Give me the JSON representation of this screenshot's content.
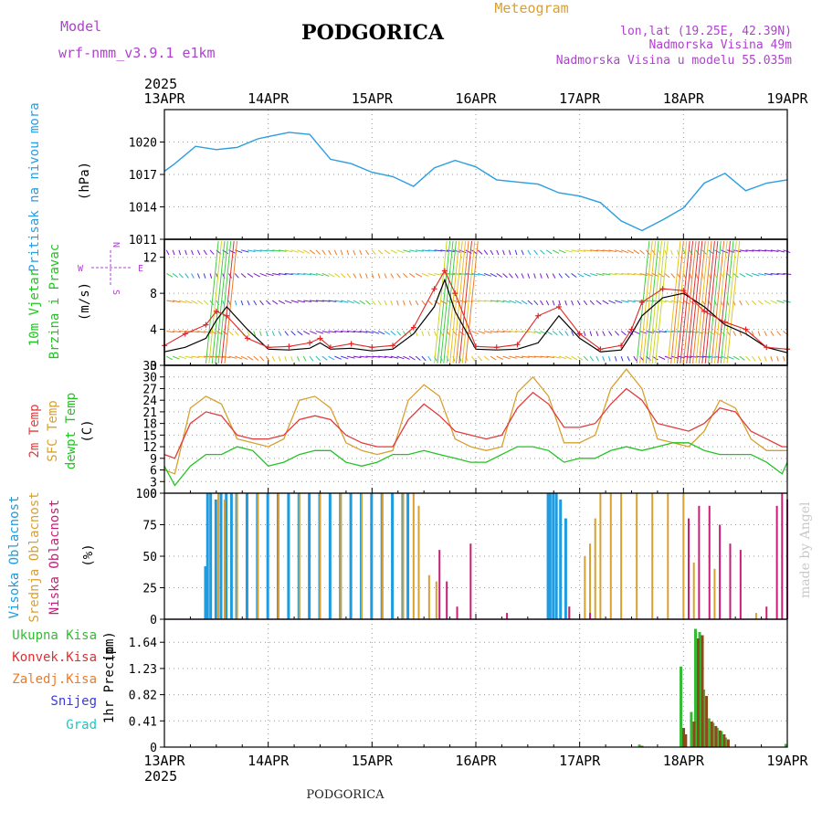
{
  "header": {
    "model_label": "Model",
    "model_name": "wrf-nmm_v3.9.1 e1km",
    "title": "PODGORICA",
    "subtitle": "Meteogram",
    "lonlat": "lon,lat (19.25E, 42.39N)",
    "altitude": "Nadmorska Visina 49m",
    "model_altitude": "Nadmorska Visina u modelu 55.035m",
    "year_top": "2025",
    "year_bottom": "2025",
    "footer_title": "PODGORICA",
    "credit": "made by Angel"
  },
  "dates": [
    "13APR",
    "14APR",
    "15APR",
    "16APR",
    "17APR",
    "18APR",
    "19APR"
  ],
  "colors": {
    "pressure": "#2a9ee0",
    "wind_speed": "#000000",
    "gust": "#e02828",
    "temp2m": "#e03c3c",
    "sfc_temp": "#d8a030",
    "dewpoint": "#22c422",
    "high_cloud": "#1f9be0",
    "mid_cloud": "#d8a030",
    "low_cloud": "#c81e78",
    "total_rain": "#33bb33",
    "conv_rain": "#e03030",
    "frozen_rain": "#f07a28",
    "snow": "#3a3ae0",
    "hail": "#18c8c8",
    "wind_label": "#22c422",
    "compass": "#b040d0"
  },
  "chart_data": [
    {
      "type": "line",
      "panel": "pressure",
      "ylabel_main": "Pritisak na nivou mora",
      "ylabel_unit": "(hPa)",
      "yticks": [
        1011,
        1014,
        1017,
        1020
      ],
      "ylim": [
        1011,
        1023
      ],
      "grid": true,
      "x_days": [
        0,
        0.1,
        0.3,
        0.5,
        0.7,
        0.9,
        1.0,
        1.2,
        1.4,
        1.6,
        1.8,
        2.0,
        2.2,
        2.4,
        2.6,
        2.8,
        3.0,
        3.2,
        3.4,
        3.6,
        3.8,
        4.0,
        4.2,
        4.4,
        4.6,
        4.8,
        5.0,
        5.2,
        5.4,
        5.6,
        5.8,
        6.0
      ],
      "series": [
        {
          "values": [
            1017.3,
            1018.0,
            1019.6,
            1019.3,
            1019.5,
            1020.3,
            1020.5,
            1020.9,
            1020.7,
            1018.4,
            1018.0,
            1017.2,
            1016.8,
            1015.9,
            1017.6,
            1018.3,
            1017.7,
            1016.5,
            1016.3,
            1016.1,
            1015.3,
            1015.0,
            1014.4,
            1012.7,
            1011.8,
            1012.8,
            1013.9,
            1016.2,
            1017.1,
            1015.5,
            1016.2,
            1016.5
          ]
        }
      ]
    },
    {
      "type": "line",
      "panel": "wind",
      "ylabel_main": "10m Vjetar",
      "ylabel_main2": "Brzina i Pravac",
      "ylabel_unit": "(m/s)",
      "compass_labels": {
        "north": "N",
        "south": "S",
        "west": "W",
        "east": "E"
      },
      "yticks": [
        0,
        4,
        8,
        12
      ],
      "ylim": [
        0,
        14
      ],
      "grid": true,
      "x_days": [
        0,
        0.2,
        0.4,
        0.5,
        0.6,
        0.8,
        1.0,
        1.2,
        1.4,
        1.5,
        1.6,
        1.8,
        2.0,
        2.2,
        2.4,
        2.6,
        2.7,
        2.8,
        3.0,
        3.2,
        3.4,
        3.6,
        3.8,
        4.0,
        4.2,
        4.4,
        4.5,
        4.6,
        4.8,
        5.0,
        5.2,
        5.4,
        5.6,
        5.8,
        6.0
      ],
      "series": [
        {
          "name": "speed",
          "values": [
            1.5,
            2.0,
            3.0,
            5.0,
            6.5,
            4.0,
            1.8,
            1.7,
            1.9,
            2.5,
            1.8,
            1.9,
            1.6,
            1.8,
            3.5,
            6.5,
            9.5,
            6.0,
            1.8,
            1.7,
            1.8,
            2.5,
            5.5,
            3.0,
            1.5,
            1.7,
            3.5,
            5.5,
            7.5,
            8.0,
            6.5,
            4.5,
            3.5,
            2.0,
            1.4
          ]
        },
        {
          "name": "gust",
          "values": [
            2.2,
            3.5,
            4.5,
            6.0,
            5.5,
            3.0,
            2.0,
            2.1,
            2.5,
            3.0,
            2.0,
            2.4,
            2.0,
            2.2,
            4.2,
            8.5,
            10.5,
            8.0,
            2.1,
            2.0,
            2.3,
            5.5,
            6.5,
            3.5,
            1.8,
            2.2,
            4.0,
            7.0,
            8.5,
            8.3,
            6.0,
            4.8,
            4.0,
            2.0,
            1.8
          ]
        }
      ]
    },
    {
      "type": "line",
      "panel": "temperature",
      "ylabel_main": "2m Temp",
      "ylabel_main2": "SFC Temp",
      "ylabel_main3": "dewpt Temp",
      "ylabel_unit": "(C)",
      "yticks": [
        0,
        3,
        6,
        9,
        12,
        15,
        18,
        21,
        24,
        27,
        30,
        33
      ],
      "ylim": [
        0,
        33
      ],
      "grid": true,
      "x_days": [
        0,
        0.1,
        0.25,
        0.4,
        0.55,
        0.7,
        0.85,
        1.0,
        1.15,
        1.3,
        1.45,
        1.6,
        1.75,
        1.9,
        2.05,
        2.2,
        2.35,
        2.5,
        2.65,
        2.8,
        2.95,
        3.1,
        3.25,
        3.4,
        3.55,
        3.7,
        3.85,
        4.0,
        4.15,
        4.3,
        4.45,
        4.6,
        4.75,
        4.9,
        5.05,
        5.2,
        5.35,
        5.5,
        5.65,
        5.8,
        5.95,
        6.0
      ],
      "series": [
        {
          "name": "temp2m",
          "values": [
            10,
            9,
            18,
            21,
            20,
            15,
            14,
            14,
            15,
            19,
            20,
            19,
            15,
            13,
            12,
            12,
            19,
            23,
            20,
            16,
            15,
            14,
            15,
            22,
            26,
            23,
            17,
            17,
            18,
            23,
            27,
            24,
            18,
            17,
            16,
            18,
            22,
            21,
            16,
            14,
            12,
            12
          ]
        },
        {
          "name": "sfc",
          "values": [
            6,
            5,
            22,
            25,
            23,
            14,
            13,
            12,
            14,
            24,
            25,
            22,
            13,
            11,
            10,
            11,
            24,
            28,
            25,
            14,
            12,
            11,
            12,
            26,
            30,
            25,
            13,
            13,
            15,
            27,
            32,
            27,
            14,
            13,
            12,
            16,
            24,
            22,
            14,
            11,
            11,
            11
          ]
        },
        {
          "name": "dewpoint",
          "values": [
            7,
            2,
            7,
            10,
            10,
            12,
            11,
            7,
            8,
            10,
            11,
            11,
            8,
            7,
            8,
            10,
            10,
            11,
            10,
            9,
            8,
            8,
            10,
            12,
            12,
            11,
            8,
            9,
            9,
            11,
            12,
            11,
            12,
            13,
            13,
            11,
            10,
            10,
            10,
            8,
            5,
            8
          ]
        }
      ]
    },
    {
      "type": "bar",
      "panel": "cloud",
      "ylabel_main": "Visoka Oblacnost",
      "ylabel_main2": "Srednja Oblacnost",
      "ylabel_main3": "Niska Oblacnost",
      "ylabel_unit": "(%)",
      "yticks": [
        0,
        25,
        50,
        75,
        100
      ],
      "ylim": [
        0,
        100
      ],
      "grid": true,
      "series": [
        {
          "name": "high",
          "x": [
            0.4,
            0.42,
            0.45,
            0.5,
            0.55,
            0.6,
            0.65,
            0.7,
            0.8,
            0.9,
            1.0,
            1.1,
            1.2,
            1.3,
            1.4,
            1.5,
            1.6,
            1.7,
            1.8,
            1.9,
            2.0,
            2.1,
            2.2,
            2.3,
            2.35,
            3.7,
            3.72,
            3.75,
            3.78,
            3.82,
            3.87
          ],
          "values": [
            42,
            100,
            100,
            95,
            100,
            100,
            100,
            100,
            100,
            100,
            100,
            100,
            100,
            100,
            100,
            100,
            100,
            100,
            100,
            100,
            100,
            100,
            100,
            100,
            100,
            100,
            100,
            100,
            100,
            95,
            80
          ]
        },
        {
          "name": "mid",
          "x": [
            0.52,
            0.58,
            0.7,
            0.9,
            1.1,
            1.3,
            1.5,
            1.7,
            1.9,
            2.1,
            2.3,
            2.4,
            2.45,
            2.55,
            2.62,
            3.9,
            4.05,
            4.1,
            4.15,
            4.2,
            4.3,
            4.4,
            4.55,
            4.7,
            4.85,
            5.0,
            5.1,
            5.3,
            5.7
          ],
          "values": [
            100,
            95,
            100,
            100,
            100,
            100,
            100,
            100,
            100,
            100,
            100,
            100,
            90,
            35,
            30,
            10,
            50,
            60,
            80,
            100,
            100,
            100,
            100,
            100,
            100,
            100,
            45,
            40,
            5
          ]
        },
        {
          "name": "low",
          "x": [
            2.65,
            2.72,
            2.82,
            2.95,
            3.1,
            3.3,
            3.9,
            4.1,
            5.05,
            5.15,
            5.25,
            5.35,
            5.45,
            5.55,
            5.8,
            5.9,
            5.95,
            6.0
          ],
          "values": [
            55,
            30,
            10,
            60,
            0,
            5,
            10,
            5,
            80,
            90,
            90,
            75,
            60,
            55,
            10,
            90,
            100,
            95
          ]
        }
      ]
    },
    {
      "type": "bar",
      "panel": "precip",
      "ylabel_main": "1hr Precip",
      "ylabel_unit": "(mm)",
      "legend": [
        "Ukupna Kisa",
        "Konvek.Kisa",
        "Zaledj.Kisa",
        "Snijeg",
        "Grad"
      ],
      "yticks": [
        0,
        0.41,
        0.82,
        1.23,
        1.64
      ],
      "ylim": [
        0,
        2.0
      ],
      "grid": true,
      "series": [
        {
          "name": "total",
          "x": [
            4.58,
            4.98,
            5.0,
            5.02,
            5.08,
            5.12,
            5.16,
            5.2,
            5.25,
            5.29,
            5.33,
            5.37,
            5.41,
            5.99
          ],
          "values": [
            0.04,
            1.26,
            0.25,
            0.1,
            0.55,
            1.85,
            1.8,
            0.9,
            0.45,
            0.38,
            0.3,
            0.25,
            0.15,
            0.05
          ]
        },
        {
          "name": "convective",
          "x": [
            4.58,
            4.98,
            5.0,
            5.08,
            5.12,
            5.16,
            5.2,
            5.25,
            5.29,
            5.33,
            5.37,
            5.41
          ],
          "values": [
            0.02,
            0.3,
            0.2,
            0.4,
            1.7,
            1.75,
            0.8,
            0.4,
            0.33,
            0.26,
            0.2,
            0.12
          ]
        }
      ]
    }
  ]
}
